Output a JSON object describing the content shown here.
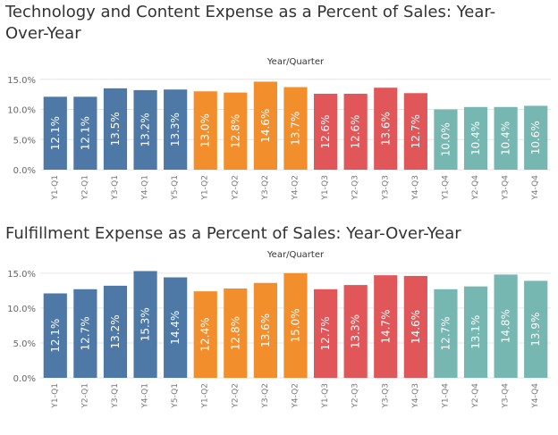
{
  "chart_data": [
    {
      "type": "bar",
      "title": "Technology and Content Expense as a Percent of Sales: Year-Over-Year",
      "x_label": "Year/Quarter",
      "categories": [
        "Y1-Q1",
        "Y2-Q1",
        "Y3-Q1",
        "Y4-Q1",
        "Y5-Q1",
        "Y1-Q2",
        "Y2-Q2",
        "Y3-Q2",
        "Y4-Q2",
        "Y1-Q3",
        "Y2-Q3",
        "Y3-Q3",
        "Y4-Q3",
        "Y1-Q4",
        "Y2-Q4",
        "Y3-Q4",
        "Y4-Q4"
      ],
      "values": [
        12.1,
        12.1,
        13.5,
        13.2,
        13.3,
        13.0,
        12.8,
        14.6,
        13.7,
        12.6,
        12.6,
        13.6,
        12.7,
        10.0,
        10.4,
        10.4,
        10.6
      ],
      "value_labels": [
        "12.1%",
        "12.1%",
        "13.5%",
        "13.2%",
        "13.3%",
        "13.0%",
        "12.8%",
        "14.6%",
        "13.7%",
        "12.6%",
        "12.6%",
        "13.6%",
        "12.7%",
        "10.0%",
        "10.4%",
        "10.4%",
        "10.6%"
      ],
      "colors": [
        "#4e79a7",
        "#4e79a7",
        "#4e79a7",
        "#4e79a7",
        "#4e79a7",
        "#f28e2b",
        "#f28e2b",
        "#f28e2b",
        "#f28e2b",
        "#e15759",
        "#e15759",
        "#e15759",
        "#e15759",
        "#76b7b2",
        "#76b7b2",
        "#76b7b2",
        "#76b7b2"
      ],
      "ylim": [
        0,
        16
      ],
      "yticks": [
        {
          "value": 0,
          "label": "0.0%"
        },
        {
          "value": 5,
          "label": "5.0%"
        },
        {
          "value": 10,
          "label": "10.0%"
        },
        {
          "value": 15,
          "label": "15.0%"
        }
      ],
      "grid": true
    },
    {
      "type": "bar",
      "title": "Fulfillment Expense as a Percent of Sales: Year-Over-Year",
      "x_label": "Year/Quarter",
      "categories": [
        "Y1-Q1",
        "Y2-Q1",
        "Y3-Q1",
        "Y4-Q1",
        "Y5-Q1",
        "Y1-Q2",
        "Y2-Q2",
        "Y3-Q2",
        "Y4-Q2",
        "Y1-Q3",
        "Y2-Q3",
        "Y3-Q3",
        "Y4-Q3",
        "Y1-Q4",
        "Y2-Q4",
        "Y3-Q4",
        "Y4-Q4"
      ],
      "values": [
        12.1,
        12.7,
        13.2,
        15.3,
        14.4,
        12.4,
        12.8,
        13.6,
        15.0,
        12.7,
        13.3,
        14.7,
        14.6,
        12.7,
        13.1,
        14.8,
        13.9
      ],
      "value_labels": [
        "12.1%",
        "12.7%",
        "13.2%",
        "15.3%",
        "14.4%",
        "12.4%",
        "12.8%",
        "13.6%",
        "15.0%",
        "12.7%",
        "13.3%",
        "14.7%",
        "14.6%",
        "12.7%",
        "13.1%",
        "14.8%",
        "13.9%"
      ],
      "colors": [
        "#4e79a7",
        "#4e79a7",
        "#4e79a7",
        "#4e79a7",
        "#4e79a7",
        "#f28e2b",
        "#f28e2b",
        "#f28e2b",
        "#f28e2b",
        "#e15759",
        "#e15759",
        "#e15759",
        "#e15759",
        "#76b7b2",
        "#76b7b2",
        "#76b7b2",
        "#76b7b2"
      ],
      "ylim": [
        0,
        16
      ],
      "yticks": [
        {
          "value": 0,
          "label": "0.0%"
        },
        {
          "value": 5,
          "label": "5.0%"
        },
        {
          "value": 10,
          "label": "10.0%"
        },
        {
          "value": 15,
          "label": "15.0%"
        }
      ],
      "grid": true
    }
  ]
}
